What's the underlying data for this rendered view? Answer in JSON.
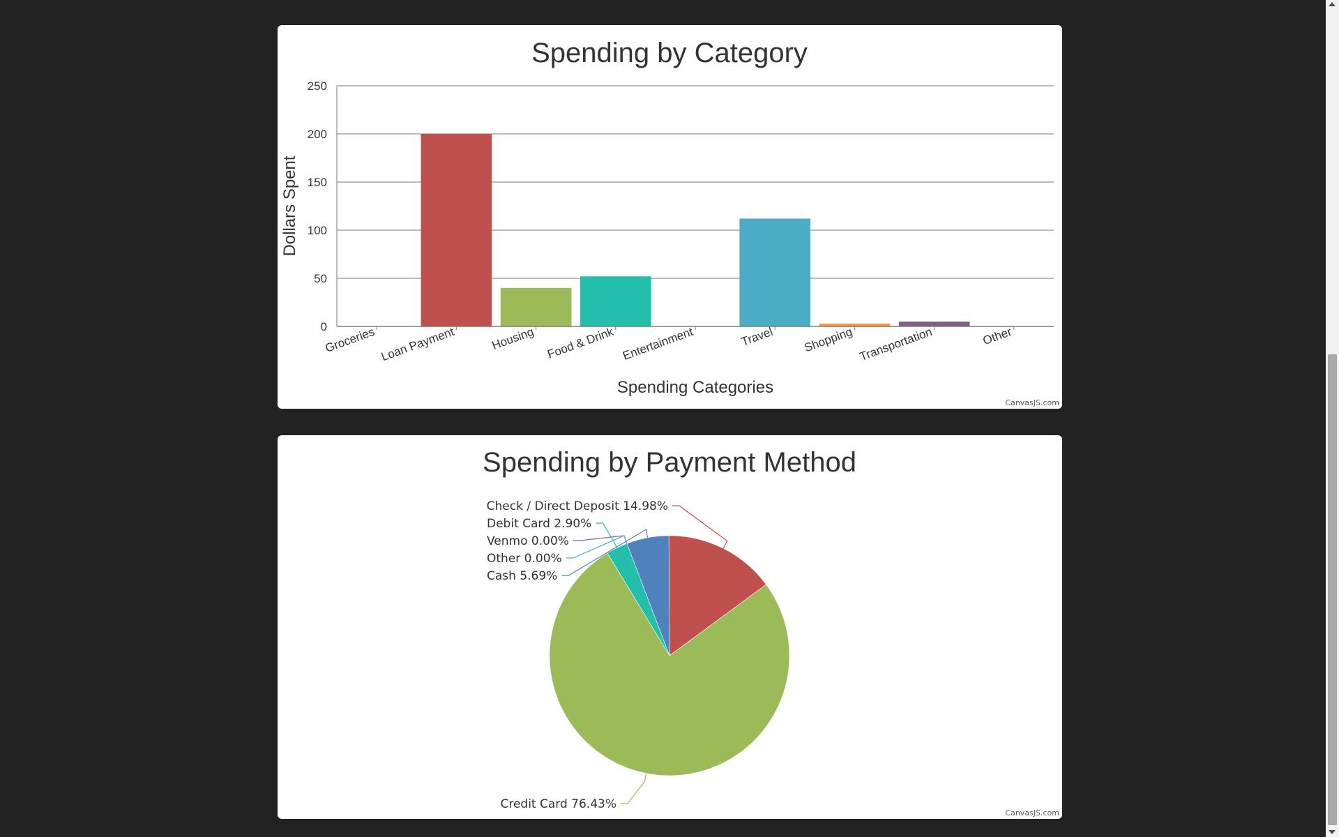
{
  "colors": {
    "page_background": "#222222",
    "card_background": "#ffffff",
    "gridline": "#7a7a7a",
    "text": "#333333"
  },
  "bar_chart": {
    "credit": "CanvasJS.com"
  },
  "pie_chart": {
    "credit": "CanvasJS.com"
  },
  "chart_data": [
    {
      "type": "bar",
      "title": "Spending by Category",
      "xlabel": "Spending Categories",
      "ylabel": "Dollars Spent",
      "ylim": [
        0,
        250
      ],
      "yticks": [
        0,
        50,
        100,
        150,
        200,
        250
      ],
      "grid": true,
      "categories": [
        "Groceries",
        "Loan Payment",
        "Housing",
        "Food & Drink",
        "Entertainment",
        "Travel",
        "Shopping",
        "Transportation",
        "Other"
      ],
      "values": [
        0,
        200,
        40,
        52,
        0,
        112,
        3,
        5,
        0
      ],
      "colors": [
        "#4f81bc",
        "#c0504e",
        "#9bbb58",
        "#23bfaa",
        "#8064a1",
        "#4aacc5",
        "#f79647",
        "#7f6084",
        "#77a033"
      ]
    },
    {
      "type": "pie",
      "title": "Spending by Payment Method",
      "legend": "none",
      "slices": [
        {
          "label": "Check / Direct Deposit",
          "percent": "14.98%",
          "value": 14.98,
          "color": "#c0504e"
        },
        {
          "label": "Credit Card",
          "percent": "76.43%",
          "value": 76.43,
          "color": "#9bbb58"
        },
        {
          "label": "Debit Card",
          "percent": "2.90%",
          "value": 2.9,
          "color": "#23bfaa"
        },
        {
          "label": "Venmo",
          "percent": "0.00%",
          "value": 0.0,
          "color": "#8064a1"
        },
        {
          "label": "Other",
          "percent": "0.00%",
          "value": 0.0,
          "color": "#4aacc5"
        },
        {
          "label": "Cash",
          "percent": "5.69%",
          "value": 5.69,
          "color": "#4f81bc"
        }
      ]
    }
  ]
}
